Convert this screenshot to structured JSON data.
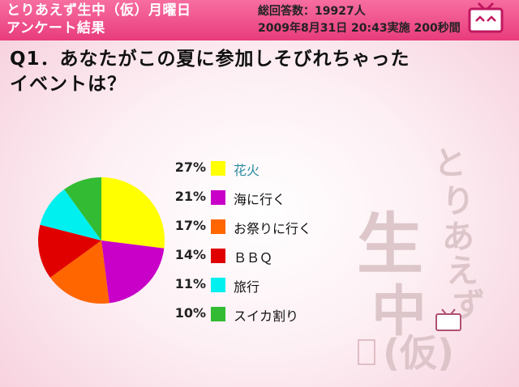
{
  "header": {
    "title_line1": "とりあえず生中（仮）月曜日",
    "title_line2": "アンケート結果",
    "meta_line1": "総回答数：19927人",
    "meta_line2": "2009年8月31日 20:43実施 200秒間"
  },
  "question": {
    "line1": "Q1．あなたがこの夏に参加しそびれちゃった",
    "line2": "イベントは？"
  },
  "chart_data": {
    "type": "pie",
    "categories": [
      "花火",
      "海に行く",
      "お祭りに行く",
      "ＢＢＱ",
      "旅行",
      "スイカ割り"
    ],
    "values": [
      27,
      21,
      17,
      14,
      11,
      10
    ],
    "labels": [
      "27%",
      "21%",
      "17%",
      "14%",
      "11%",
      "10%"
    ],
    "colors": [
      "#ffff00",
      "#c800c8",
      "#ff6600",
      "#e00000",
      "#00f0f0",
      "#33bb33"
    ]
  },
  "watermark": {
    "chars": [
      "と",
      "り",
      "あ",
      "え",
      "ず",
      "生",
      "中",
      "(仮)"
    ]
  }
}
